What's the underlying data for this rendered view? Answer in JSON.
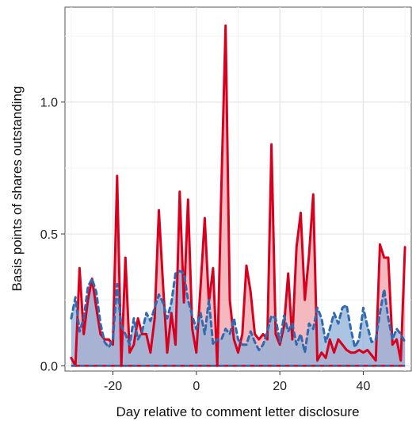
{
  "chart_data": {
    "type": "area",
    "xlabel": "Day relative to comment letter disclosure",
    "ylabel": "Basis points of shares outstanding",
    "xlim": [
      -31.5,
      51.5
    ],
    "ylim": [
      -0.02,
      1.36
    ],
    "x_ticks": [
      -20,
      0,
      20,
      40
    ],
    "x_tick_labels": [
      "-20",
      "0",
      "20",
      "40"
    ],
    "y_ticks": [
      0.0,
      0.5,
      1.0
    ],
    "y_tick_labels": [
      "0.0",
      "0.5",
      "1.0"
    ],
    "grid": true,
    "x": [
      -30,
      -29,
      -28,
      -27,
      -26,
      -25,
      -24,
      -23,
      -22,
      -21,
      -20,
      -19,
      -18,
      -17,
      -16,
      -15,
      -14,
      -13,
      -12,
      -11,
      -10,
      -9,
      -8,
      -7,
      -6,
      -5,
      -4,
      -3,
      -2,
      -1,
      0,
      1,
      2,
      3,
      4,
      5,
      6,
      7,
      8,
      9,
      10,
      11,
      12,
      13,
      14,
      15,
      16,
      17,
      18,
      19,
      20,
      21,
      22,
      23,
      24,
      25,
      26,
      27,
      28,
      29,
      30,
      31,
      32,
      33,
      34,
      35,
      36,
      37,
      38,
      39,
      40,
      41,
      42,
      43,
      44,
      45,
      46,
      47,
      48,
      49,
      50
    ],
    "series": [
      {
        "color": "#d7001f",
        "fill": "#f0a0aa",
        "line": "solid",
        "values": [
          0.03,
          0.0,
          0.37,
          0.12,
          0.25,
          0.33,
          0.22,
          0.12,
          0.1,
          0.1,
          0.08,
          0.72,
          0.0,
          0.41,
          0.05,
          0.08,
          0.18,
          0.12,
          0.12,
          0.05,
          0.18,
          0.59,
          0.31,
          0.05,
          0.2,
          0.08,
          0.66,
          0.24,
          0.63,
          0.14,
          0.05,
          0.3,
          0.56,
          0.24,
          0.37,
          0.0,
          0.68,
          1.29,
          0.25,
          0.1,
          0.05,
          0.12,
          0.38,
          0.28,
          0.12,
          0.1,
          0.12,
          0.1,
          0.84,
          0.12,
          0.08,
          0.15,
          0.35,
          0.1,
          0.45,
          0.58,
          0.25,
          0.42,
          0.65,
          0.02,
          0.05,
          0.03,
          0.1,
          0.05,
          0.1,
          0.08,
          0.06,
          0.05,
          0.05,
          0.06,
          0.05,
          0.06,
          0.04,
          0.02,
          0.46,
          0.41,
          0.41,
          0.08,
          0.1,
          0.02,
          0.45
        ]
      },
      {
        "color": "#2f6ab0",
        "fill": "#8fb0d8",
        "line": "dashed",
        "values": [
          0.18,
          0.26,
          0.13,
          0.18,
          0.3,
          0.33,
          0.28,
          0.16,
          0.09,
          0.07,
          0.1,
          0.31,
          0.15,
          0.12,
          0.08,
          0.18,
          0.1,
          0.13,
          0.2,
          0.17,
          0.22,
          0.27,
          0.24,
          0.18,
          0.24,
          0.35,
          0.36,
          0.35,
          0.25,
          0.19,
          0.14,
          0.2,
          0.12,
          0.25,
          0.08,
          0.1,
          0.1,
          0.14,
          0.12,
          0.18,
          0.1,
          0.08,
          0.08,
          0.13,
          0.09,
          0.06,
          0.08,
          0.13,
          0.19,
          0.18,
          0.09,
          0.19,
          0.13,
          0.16,
          0.08,
          0.12,
          0.05,
          0.16,
          0.14,
          0.22,
          0.18,
          0.09,
          0.14,
          0.2,
          0.16,
          0.22,
          0.23,
          0.14,
          0.07,
          0.1,
          0.22,
          0.15,
          0.09,
          0.1,
          0.2,
          0.29,
          0.18,
          0.1,
          0.14,
          0.12,
          0.09
        ]
      }
    ]
  }
}
